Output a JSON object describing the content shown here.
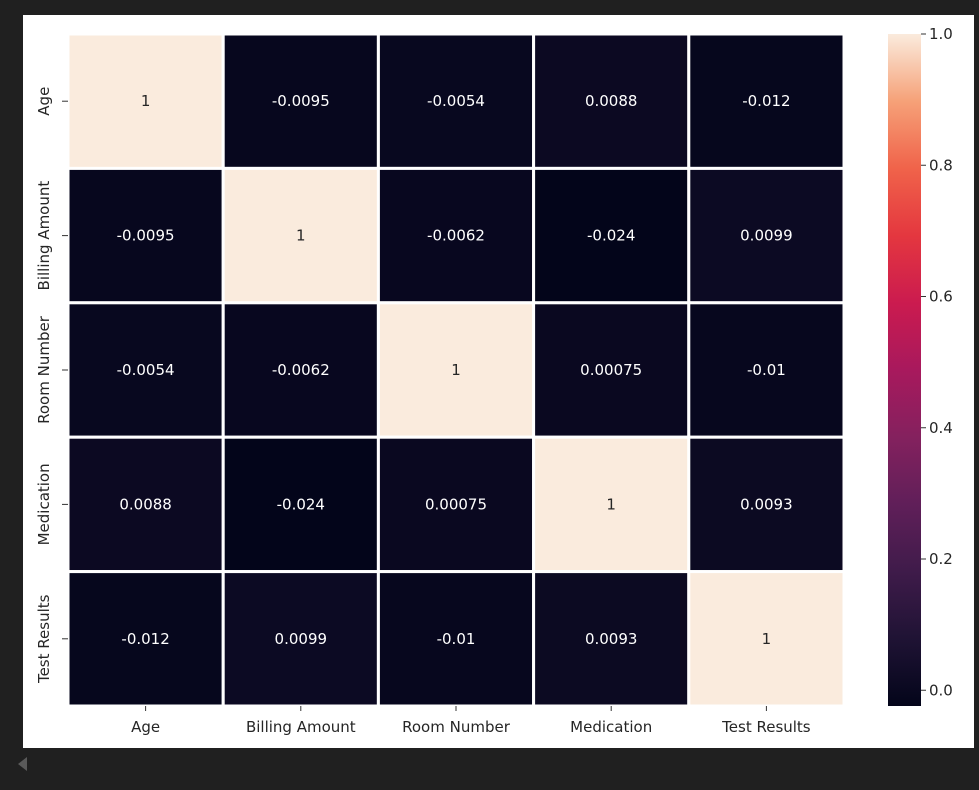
{
  "chart_data": {
    "type": "heatmap",
    "title": "",
    "x_categories": [
      "Age",
      "Billing Amount",
      "Room Number",
      "Medication",
      "Test Results"
    ],
    "y_categories": [
      "Age",
      "Billing Amount",
      "Room Number",
      "Medication",
      "Test Results"
    ],
    "values": [
      [
        1,
        -0.0095,
        -0.0054,
        0.0088,
        -0.012
      ],
      [
        -0.0095,
        1,
        -0.0062,
        -0.024,
        0.0099
      ],
      [
        -0.0054,
        -0.0062,
        1,
        0.00075,
        -0.01
      ],
      [
        0.0088,
        -0.024,
        0.00075,
        1,
        0.0093
      ],
      [
        -0.012,
        0.0099,
        -0.01,
        0.0093,
        1
      ]
    ],
    "annotations": [
      [
        "1",
        "-0.0095",
        "-0.0054",
        "0.0088",
        "-0.012"
      ],
      [
        "-0.0095",
        "1",
        "-0.0062",
        "-0.024",
        "0.0099"
      ],
      [
        "-0.0054",
        "-0.0062",
        "1",
        "0.00075",
        "-0.01"
      ],
      [
        "0.0088",
        "-0.024",
        "0.00075",
        "1",
        "0.0093"
      ],
      [
        "-0.012",
        "0.0099",
        "-0.01",
        "0.0093",
        "1"
      ]
    ],
    "colorbar": {
      "range": [
        -0.024,
        1
      ],
      "ticks": [
        0.0,
        0.2,
        0.4,
        0.6,
        0.8,
        1.0
      ],
      "tick_labels": [
        "0.0",
        "0.2",
        "0.4",
        "0.6",
        "0.8",
        "1.0"
      ],
      "colormap": "rocket",
      "position": "right"
    },
    "grid": true,
    "legend": "colorbar-right"
  }
}
